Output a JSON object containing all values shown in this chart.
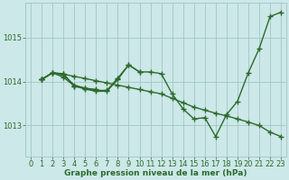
{
  "bg_color": "#cce8e8",
  "line_color": "#2d6a2d",
  "grid_color": "#9bbfbf",
  "xlabel": "Graphe pression niveau de la mer (hPa)",
  "xlim": [
    -0.5,
    23.5
  ],
  "ylim": [
    1012.3,
    1015.8
  ],
  "yticks": [
    1013,
    1014,
    1015
  ],
  "xticks": [
    0,
    1,
    2,
    3,
    4,
    5,
    6,
    7,
    8,
    9,
    10,
    11,
    12,
    13,
    14,
    15,
    16,
    17,
    18,
    19,
    20,
    21,
    22,
    23
  ],
  "series": [
    {
      "x": [
        1,
        2,
        3,
        4,
        5,
        6,
        7,
        8,
        9,
        10,
        11,
        12,
        13,
        14,
        15,
        16,
        17,
        18,
        19,
        20,
        21,
        22,
        23
      ],
      "y": [
        1014.05,
        1014.2,
        1014.18,
        1013.9,
        1013.83,
        1013.78,
        1013.78,
        1014.05,
        1014.38,
        1014.22,
        1014.22,
        1014.18,
        1013.72,
        1013.38,
        1013.15,
        1013.18,
        1012.75,
        1013.25,
        1013.55,
        1014.2,
        1014.75,
        1015.48,
        1015.58
      ]
    },
    {
      "x": [
        1,
        2,
        3,
        4,
        5,
        6,
        7,
        8,
        9,
        10,
        11,
        12,
        13,
        14,
        15,
        16,
        17,
        18,
        19,
        20,
        21,
        22,
        23
      ],
      "y": [
        1014.05,
        1014.2,
        1014.17,
        1014.12,
        1014.07,
        1014.02,
        1013.97,
        1013.92,
        1013.87,
        1013.82,
        1013.77,
        1013.72,
        1013.62,
        1013.52,
        1013.42,
        1013.35,
        1013.28,
        1013.22,
        1013.15,
        1013.08,
        1013.0,
        1012.85,
        1012.75
      ]
    },
    {
      "x": [
        1,
        2,
        3,
        4,
        5,
        6,
        7,
        8,
        9,
        10
      ],
      "y": [
        1014.05,
        1014.2,
        1014.15,
        1013.92,
        1013.85,
        1013.8,
        1013.8,
        1014.08,
        1014.38,
        1014.22
      ]
    },
    {
      "x": [
        1,
        2,
        3,
        4,
        5,
        6
      ],
      "y": [
        1014.05,
        1014.2,
        1014.1,
        1013.9,
        1013.85,
        1013.82
      ]
    }
  ],
  "marker": "+",
  "markersize": 4,
  "markeredgewidth": 1.0,
  "linewidth": 1.0,
  "xlabel_fontsize": 6.5,
  "tick_fontsize": 6
}
